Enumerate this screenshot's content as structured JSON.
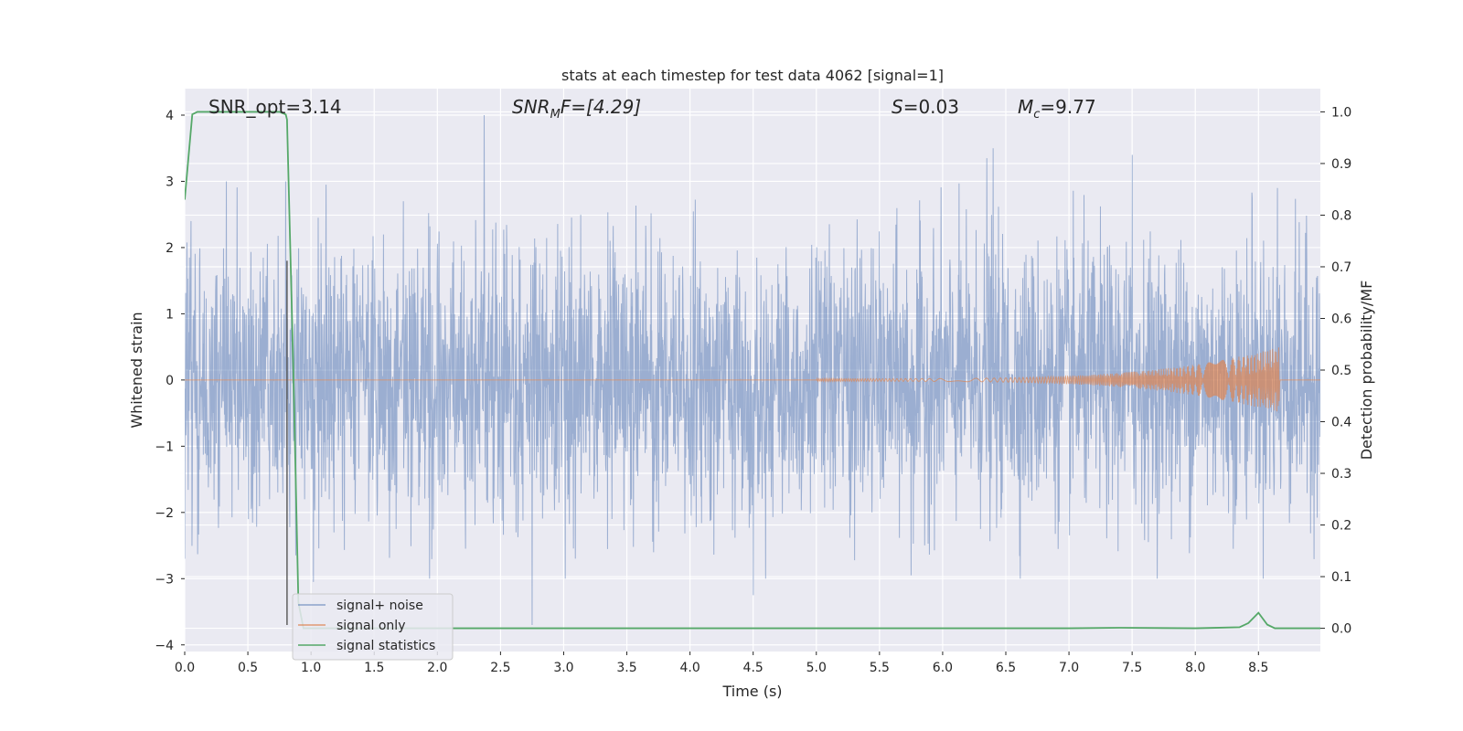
{
  "chart_data": {
    "type": "line",
    "title": "stats at each timestep for test data 4062 [signal=1]",
    "xlabel": "Time (s)",
    "ylabel": "Whitened strain",
    "y2label": "Detection probability/MF",
    "xlim": [
      0.0,
      8.99
    ],
    "ylim": [
      -4.1,
      4.4
    ],
    "y2lim": [
      -0.045,
      1.045
    ],
    "xticks": [
      0.0,
      0.5,
      1.0,
      1.5,
      2.0,
      2.5,
      3.0,
      3.5,
      4.0,
      4.5,
      5.0,
      5.5,
      6.0,
      6.5,
      7.0,
      7.5,
      8.0,
      8.5
    ],
    "xtick_labels": [
      "0.0",
      "0.5",
      "1.0",
      "1.5",
      "2.0",
      "2.5",
      "3.0",
      "3.5",
      "4.0",
      "4.5",
      "5.0",
      "5.5",
      "6.0",
      "6.5",
      "7.0",
      "7.5",
      "8.0",
      "8.5"
    ],
    "yticks": [
      -4,
      -3,
      -2,
      -1,
      0,
      1,
      2,
      3,
      4
    ],
    "ytick_labels": [
      "−4",
      "−3",
      "−2",
      "−1",
      "0",
      "1",
      "2",
      "3",
      "4"
    ],
    "y2ticks": [
      0.0,
      0.1,
      0.2,
      0.3,
      0.4,
      0.5,
      0.6,
      0.7,
      0.8,
      0.9,
      1.0
    ],
    "y2tick_labels": [
      "0.0",
      "0.1",
      "0.2",
      "0.3",
      "0.4",
      "0.5",
      "0.6",
      "0.7",
      "0.8",
      "0.9",
      "1.0"
    ],
    "grid": true,
    "legend_position": "lower-left",
    "annotations": {
      "snr_opt": "SNR_opt=3.14",
      "snr_mf_base": "SNR",
      "snr_mf_sub": "M",
      "snr_mf_rest": "F=[4.29]",
      "s_base": "S",
      "s_rest": "=0.03",
      "mc_base": "M",
      "mc_sub": "c",
      "mc_rest": "=9.77"
    },
    "vertical_marker": {
      "x": 0.81,
      "y_from": -3.7,
      "y_to": 1.8,
      "color": "#555555"
    },
    "series": [
      {
        "name": "signal+ noise",
        "axis": "left",
        "color": "#4c72b0",
        "envelope_note_free": true,
        "peaks": [
          {
            "x": 0.05,
            "y": 2.4
          },
          {
            "x": 0.33,
            "y": 3.0
          },
          {
            "x": 0.8,
            "y": 3.0
          },
          {
            "x": 1.12,
            "y": 2.95
          },
          {
            "x": 2.37,
            "y": 4.0
          },
          {
            "x": 2.75,
            "y": -3.7
          },
          {
            "x": 4.5,
            "y": -3.25
          },
          {
            "x": 5.55,
            "y": -0.45
          },
          {
            "x": 6.35,
            "y": 3.35
          },
          {
            "x": 6.4,
            "y": 3.5
          },
          {
            "x": 7.5,
            "y": 3.4
          },
          {
            "x": 8.45,
            "y": 2.75
          },
          {
            "x": 8.65,
            "y": 2.9
          },
          {
            "x": 0.0,
            "y": -2.7
          },
          {
            "x": 1.02,
            "y": -3.05
          },
          {
            "x": 5.75,
            "y": -2.95
          }
        ]
      },
      {
        "name": "signal only",
        "axis": "left",
        "color": "#dd8452",
        "chirp": {
          "start_x": 5.0,
          "end_x": 8.67,
          "start_amp": 0.02,
          "end_amp": 0.5,
          "drop_to": 0.0
        }
      },
      {
        "name": "signal statistics",
        "axis": "right",
        "color": "#55a868",
        "x": [
          0.0,
          0.06,
          0.1,
          0.2,
          0.3,
          0.4,
          0.5,
          0.6,
          0.7,
          0.75,
          0.8,
          0.81,
          0.86,
          0.9,
          0.94,
          1.0,
          2.0,
          3.0,
          4.0,
          5.0,
          6.0,
          7.0,
          7.4,
          8.0,
          8.35,
          8.42,
          8.5,
          8.57,
          8.63,
          8.7,
          8.8,
          8.99
        ],
        "y": [
          0.83,
          0.995,
          1.0,
          1.0,
          1.0,
          1.0,
          1.0,
          1.0,
          1.0,
          1.0,
          0.995,
          0.985,
          0.5,
          0.05,
          0.0,
          0.0,
          0.0,
          0.0,
          0.0,
          0.0,
          0.0,
          0.0,
          0.001,
          0.0,
          0.002,
          0.01,
          0.03,
          0.007,
          0.0,
          0.0,
          0.0,
          0.0
        ]
      }
    ]
  }
}
